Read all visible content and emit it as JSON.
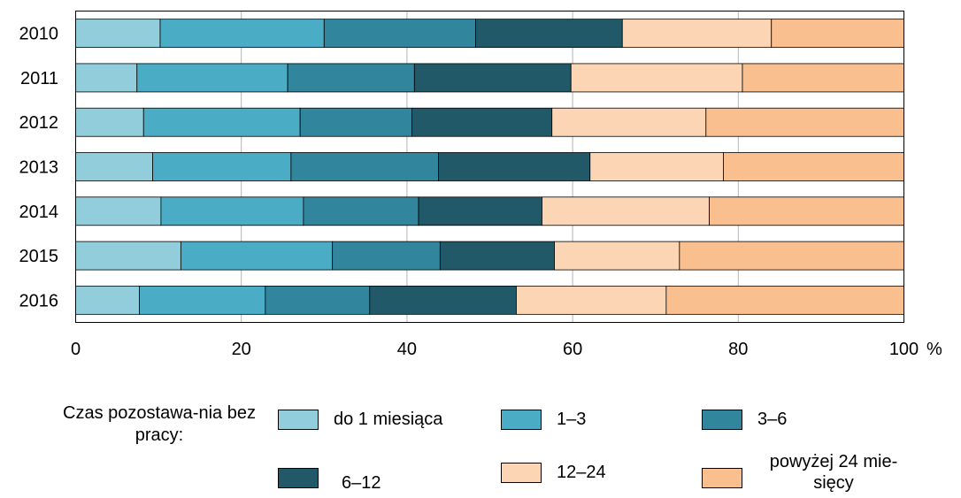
{
  "chart_data": {
    "type": "bar",
    "orientation": "horizontal",
    "stacked": true,
    "categories": [
      "2010",
      "2011",
      "2012",
      "2013",
      "2014",
      "2015",
      "2016"
    ],
    "series": [
      {
        "name": "do 1 miesiąca",
        "color": "#92cddc",
        "values": [
          10.2,
          7.4,
          8.2,
          9.3,
          10.3,
          12.7,
          7.7
        ]
      },
      {
        "name": "1–3",
        "color": "#4bacc6",
        "values": [
          19.8,
          18.2,
          18.9,
          16.7,
          17.2,
          18.3,
          15.2
        ]
      },
      {
        "name": "3–6",
        "color": "#31859c",
        "values": [
          18.3,
          15.3,
          13.5,
          17.8,
          13.9,
          13.0,
          12.6
        ]
      },
      {
        "name": "6–12",
        "color": "#215968",
        "values": [
          17.7,
          18.9,
          16.9,
          18.3,
          14.9,
          13.8,
          17.7
        ]
      },
      {
        "name": "12–24",
        "color": "#fcd5b4",
        "values": [
          18.0,
          20.7,
          18.6,
          16.1,
          20.2,
          15.1,
          18.1
        ]
      },
      {
        "name": "powyżej 24 miesięcy",
        "color": "#fabf8f",
        "values": [
          16.0,
          19.5,
          23.9,
          21.8,
          23.5,
          27.1,
          28.7
        ]
      }
    ],
    "xlim": [
      0,
      100
    ],
    "xticks": [
      "0",
      "20",
      "40",
      "60",
      "80",
      "100"
    ],
    "xunit": "%",
    "grid": "vertical"
  },
  "legend": {
    "title": "Czas pozostawa-nia bez pracy:",
    "items": [
      {
        "label": "do 1 miesiąca",
        "color": "#92cddc"
      },
      {
        "label": "1–3",
        "color": "#4bacc6"
      },
      {
        "label": "3–6",
        "color": "#31859c"
      },
      {
        "label": "6–12",
        "color": "#215968"
      },
      {
        "label": "12–24",
        "color": "#fcd5b4"
      },
      {
        "label": "powyżej 24 mie-sięcy",
        "color": "#fabf8f"
      }
    ]
  }
}
